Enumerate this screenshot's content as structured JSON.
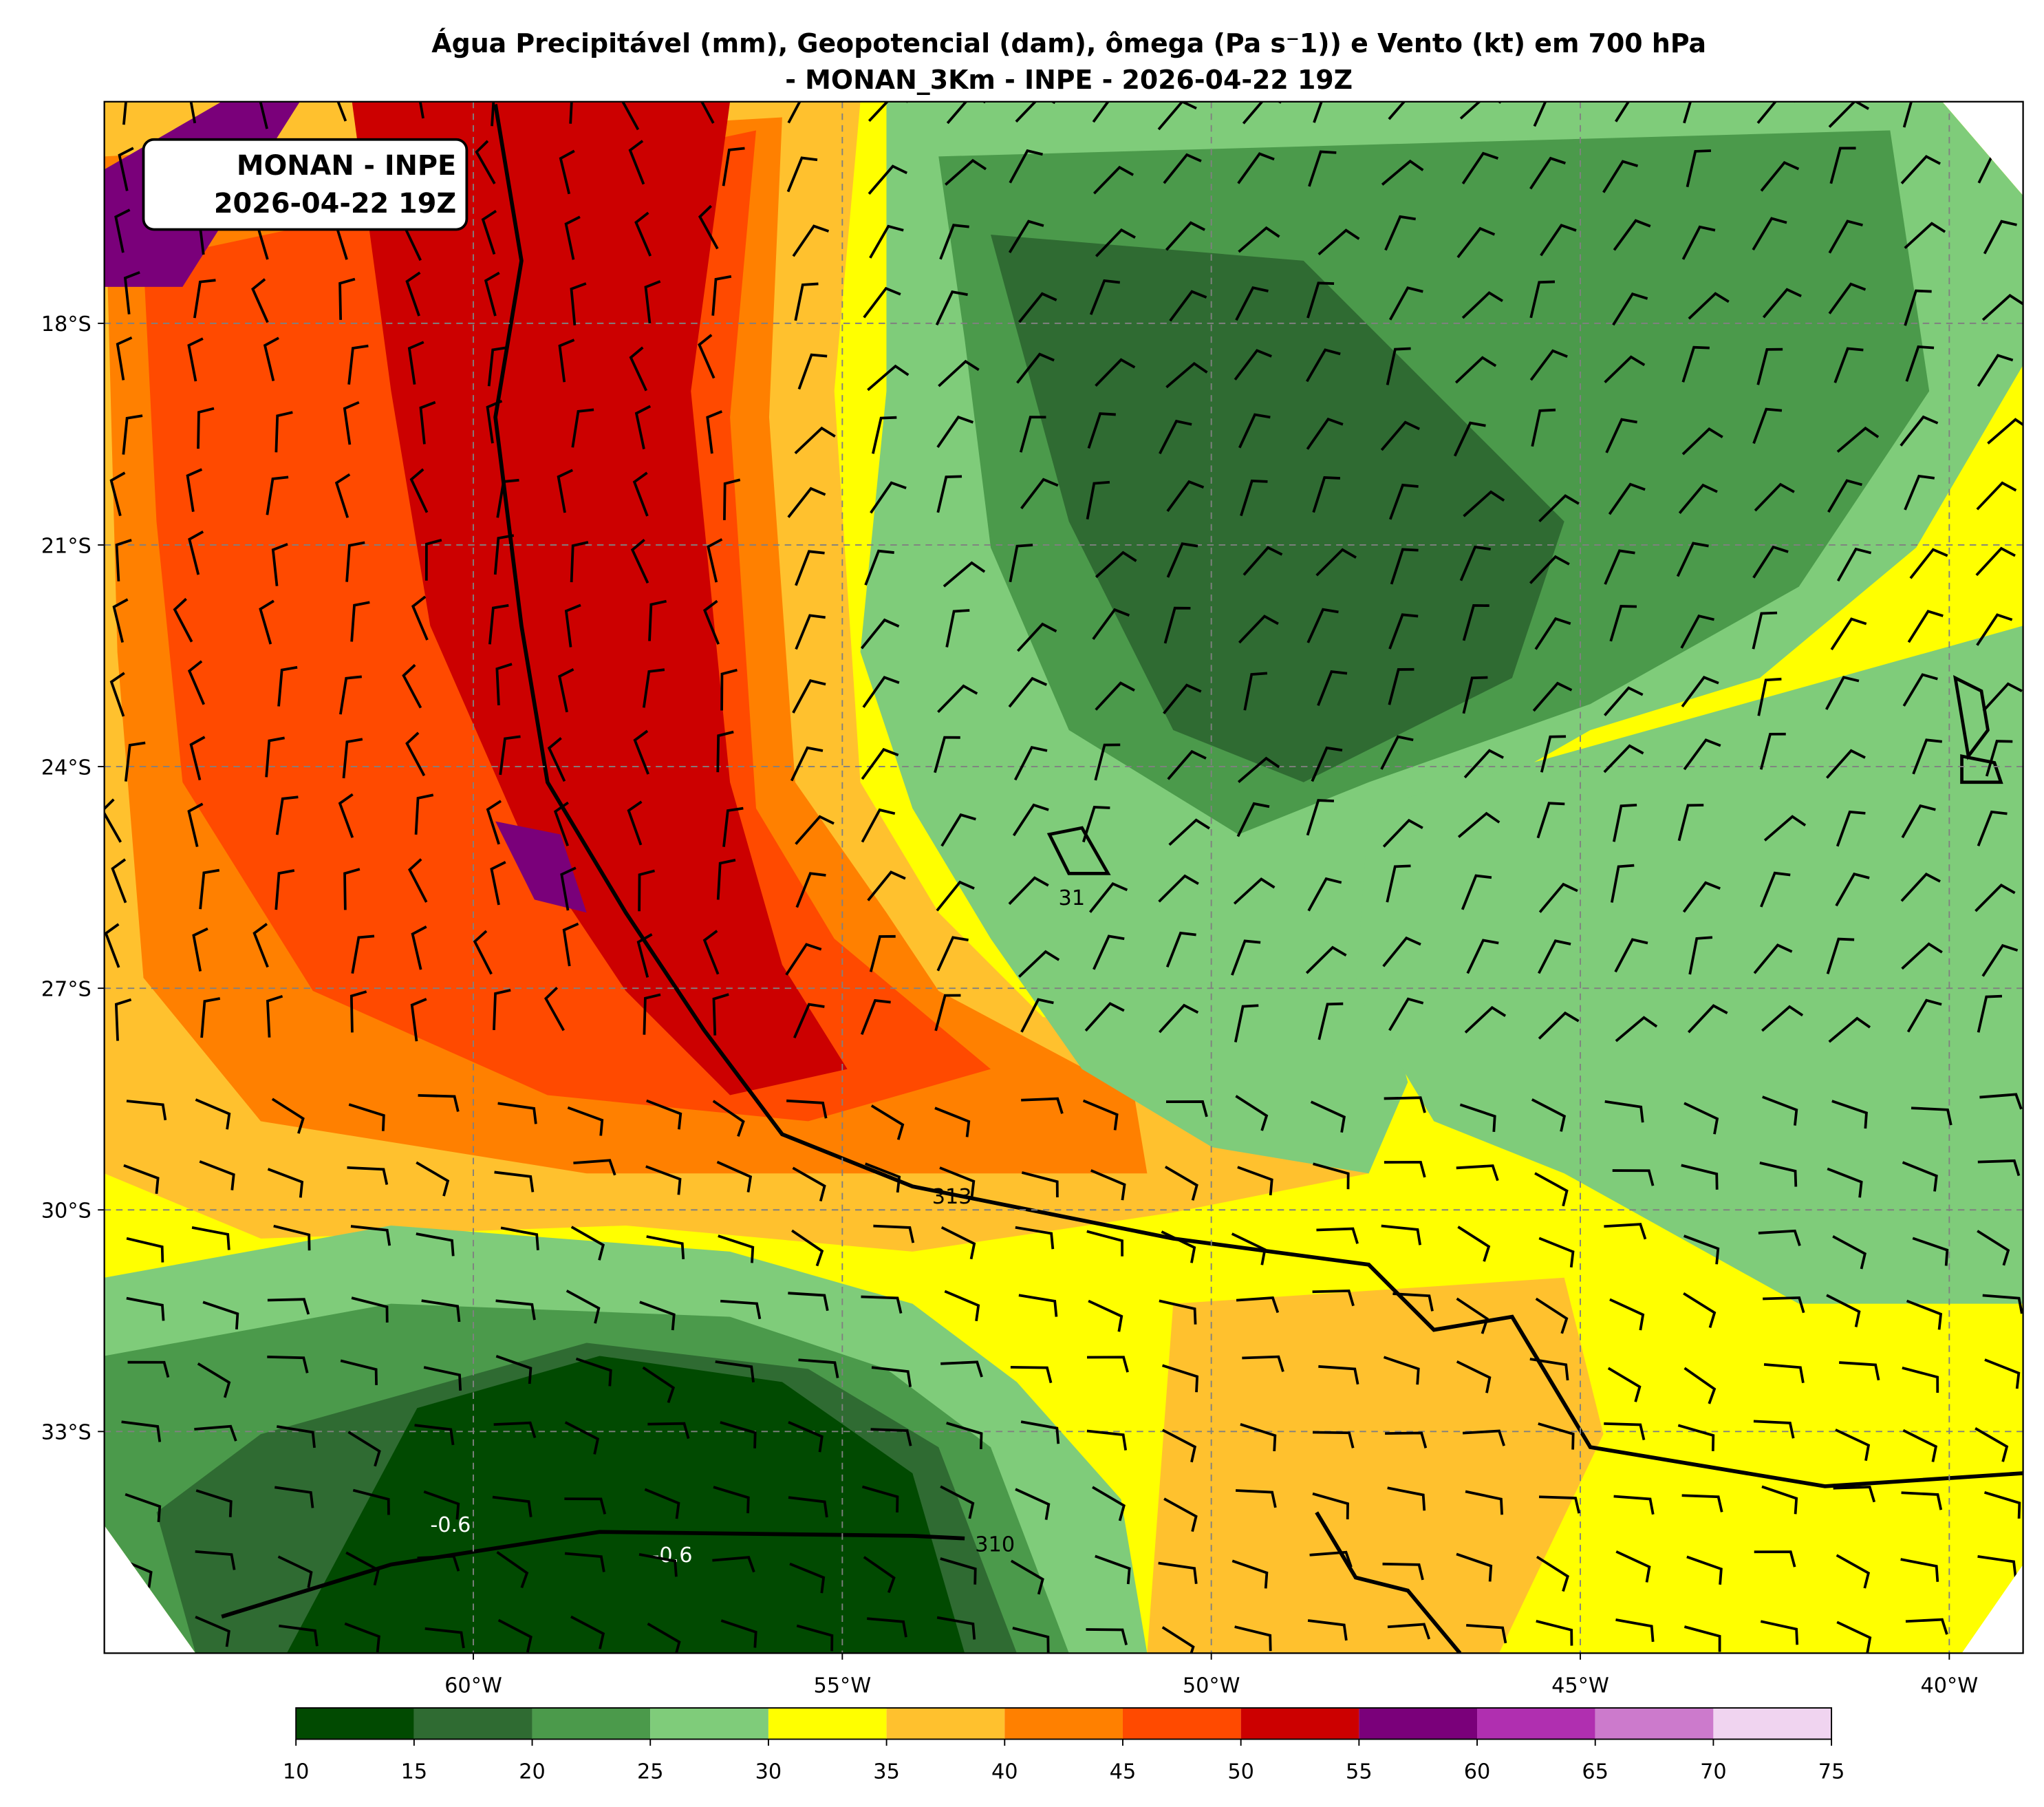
{
  "header": {
    "title_line1": "Água Precipitável (mm), Geopotencial (dam), ômega (Pa s⁻1)) e Vento (kt) em 700 hPa",
    "title_line2": "- MONAN_3Km - INPE - 2026-04-22 19Z"
  },
  "info_box": {
    "line1": "MONAN - INPE",
    "line2": "2026-04-22 19Z"
  },
  "map": {
    "xlim": [
      -65,
      -39
    ],
    "ylim": [
      -36,
      -15
    ],
    "xticks": [
      {
        "value": -60,
        "label": "60°W"
      },
      {
        "value": -55,
        "label": "55°W"
      },
      {
        "value": -50,
        "label": "50°W"
      },
      {
        "value": -45,
        "label": "45°W"
      },
      {
        "value": -40,
        "label": "40°W"
      }
    ],
    "yticks": [
      {
        "value": -18,
        "label": "18°S"
      },
      {
        "value": -21,
        "label": "21°S"
      },
      {
        "value": -24,
        "label": "24°S"
      },
      {
        "value": -27,
        "label": "27°S"
      },
      {
        "value": -30,
        "label": "30°S"
      },
      {
        "value": -33,
        "label": "33°S"
      }
    ],
    "grid": true,
    "contour_labels": [
      "313",
      "310",
      "-0.6",
      "-0.6",
      "31"
    ]
  },
  "colorbar": {
    "levels": [
      10,
      15,
      20,
      25,
      30,
      35,
      40,
      45,
      50,
      55,
      60,
      65,
      70,
      75
    ],
    "colors": [
      "#014a01",
      "#2f6b32",
      "#4b9a4b",
      "#7fcc7a",
      "#ffff00",
      "#ffc12e",
      "#ff8000",
      "#ff4a00",
      "#cc0000",
      "#7a007a",
      "#b02fb0",
      "#cc7acc",
      "#f0d4f0"
    ]
  }
}
